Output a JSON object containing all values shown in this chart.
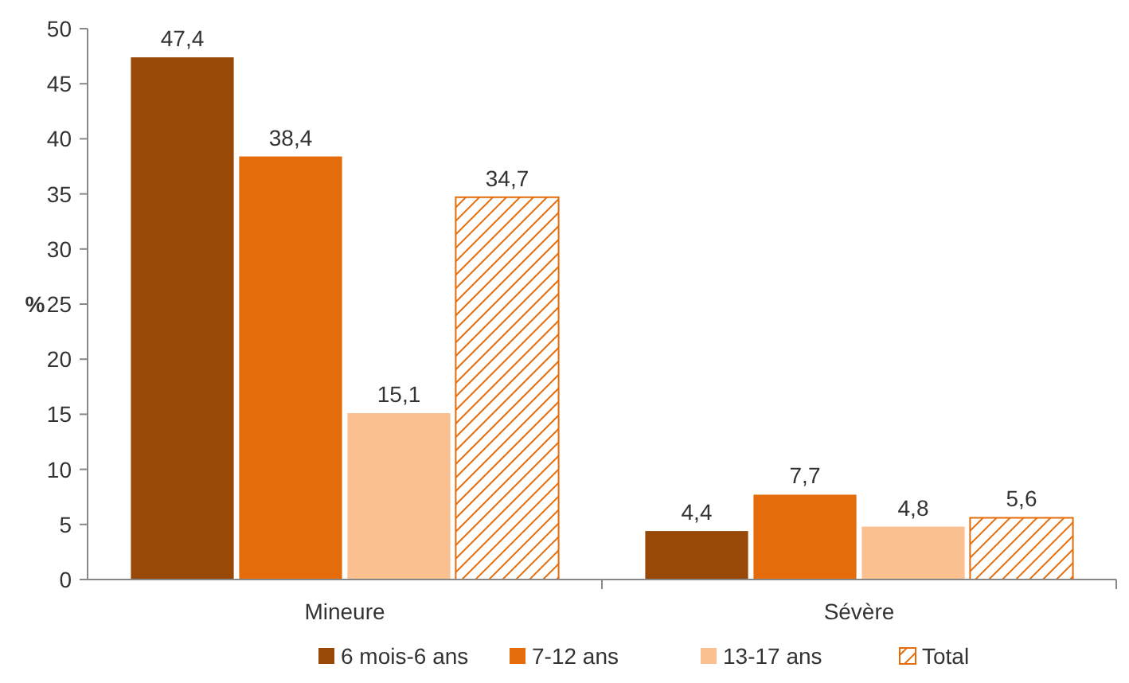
{
  "chart_data": {
    "type": "bar",
    "ylabel": "%",
    "categories": [
      "Mineure",
      "Sévère"
    ],
    "series": [
      {
        "name": "6 mois-6 ans",
        "color": "#984807",
        "values": [
          47.4,
          4.4
        ],
        "value_labels": [
          "47,4",
          "4,4"
        ]
      },
      {
        "name": "7-12 ans",
        "color": "#e46c0a",
        "values": [
          38.4,
          7.7
        ],
        "value_labels": [
          "38,4",
          "7,7"
        ]
      },
      {
        "name": "13-17 ans",
        "color": "#fac090",
        "values": [
          15.1,
          4.8
        ],
        "value_labels": [
          "15,1",
          "4,8"
        ]
      },
      {
        "name": "Total",
        "color": "#e46c0a",
        "values": [
          34.7,
          5.6
        ],
        "value_labels": [
          "34,7",
          "5,6"
        ]
      }
    ],
    "ylim": [
      0,
      50
    ],
    "yticks": [
      0,
      5,
      10,
      15,
      20,
      25,
      30,
      35,
      40,
      45,
      50
    ],
    "legend": "bottom"
  }
}
